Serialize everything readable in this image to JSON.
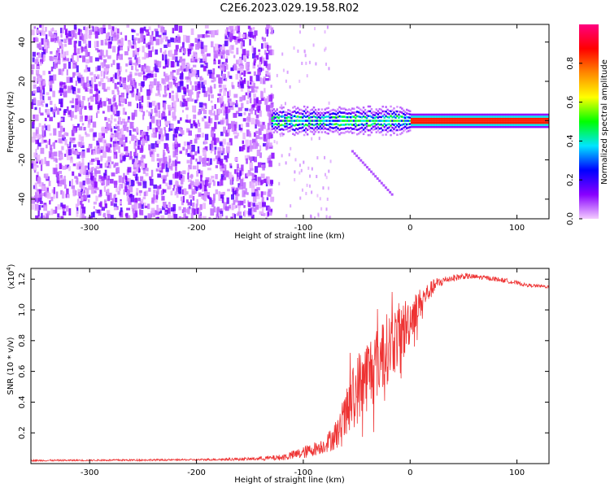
{
  "page_title": "C2E6.2023.029.19.58.R02",
  "chart_data": [
    {
      "type": "heatmap",
      "title": "C2E6.2023.029.19.58.R02",
      "xlabel": "Height of straight line (km)",
      "ylabel": "Frequency (Hz)",
      "xlim": [
        -355,
        130
      ],
      "ylim": [
        -50,
        49
      ],
      "xticks": [
        -300,
        -200,
        -100,
        0,
        100
      ],
      "yticks": [
        -40,
        -20,
        0,
        20,
        40
      ],
      "colorbar": {
        "label": "Normalized spectral amplitude",
        "range": [
          0,
          1
        ],
        "ticks": [
          "0.0",
          "0.2",
          "0.4",
          "0.6",
          "0.8"
        ],
        "colors": [
          "#f4ccff",
          "#8800ff",
          "#0000ff",
          "#00e5ff",
          "#00ff00",
          "#ffff00",
          "#ff8800",
          "#ff0000",
          "#ff0080"
        ]
      },
      "features": {
        "noise_region_x": [
          -355,
          -130
        ],
        "sparse_region_x": [
          -130,
          -75
        ],
        "signal_line_freq": 0,
        "signal_start_x": -130,
        "signal_strong_from_x": 0,
        "faint_branch": {
          "x": [
            -55,
            -18
          ],
          "freq": [
            -15,
            -37
          ]
        }
      }
    },
    {
      "type": "line",
      "title": "",
      "xlabel": "Height of straight line (km)",
      "ylabel": "SNR (10 * v/v)",
      "yscale_label": "(x10",
      "yscale_exp": "4",
      "yscale_close": ")",
      "xlim": [
        -355,
        130
      ],
      "ylim": [
        0,
        1.27
      ],
      "xticks": [
        -300,
        -200,
        -100,
        0,
        100
      ],
      "yticks": [
        0.2,
        0.4,
        0.6,
        0.8,
        1.0,
        1.2
      ],
      "series_color": "#ee3333",
      "envelope": {
        "x": [
          -355,
          -200,
          -150,
          -120,
          -100,
          -80,
          -65,
          -55,
          -45,
          -35,
          -25,
          -15,
          -5,
          5,
          15,
          25,
          35,
          50,
          70,
          90,
          110,
          130
        ],
        "y": [
          0.02,
          0.025,
          0.03,
          0.04,
          0.07,
          0.12,
          0.22,
          0.4,
          0.55,
          0.62,
          0.72,
          0.8,
          0.88,
          1.0,
          1.1,
          1.17,
          1.2,
          1.22,
          1.21,
          1.19,
          1.16,
          1.15
        ],
        "spread": [
          0.005,
          0.006,
          0.01,
          0.02,
          0.04,
          0.05,
          0.12,
          0.2,
          0.25,
          0.25,
          0.24,
          0.22,
          0.2,
          0.12,
          0.07,
          0.04,
          0.025,
          0.02,
          0.015,
          0.015,
          0.01,
          0.01
        ]
      }
    }
  ]
}
